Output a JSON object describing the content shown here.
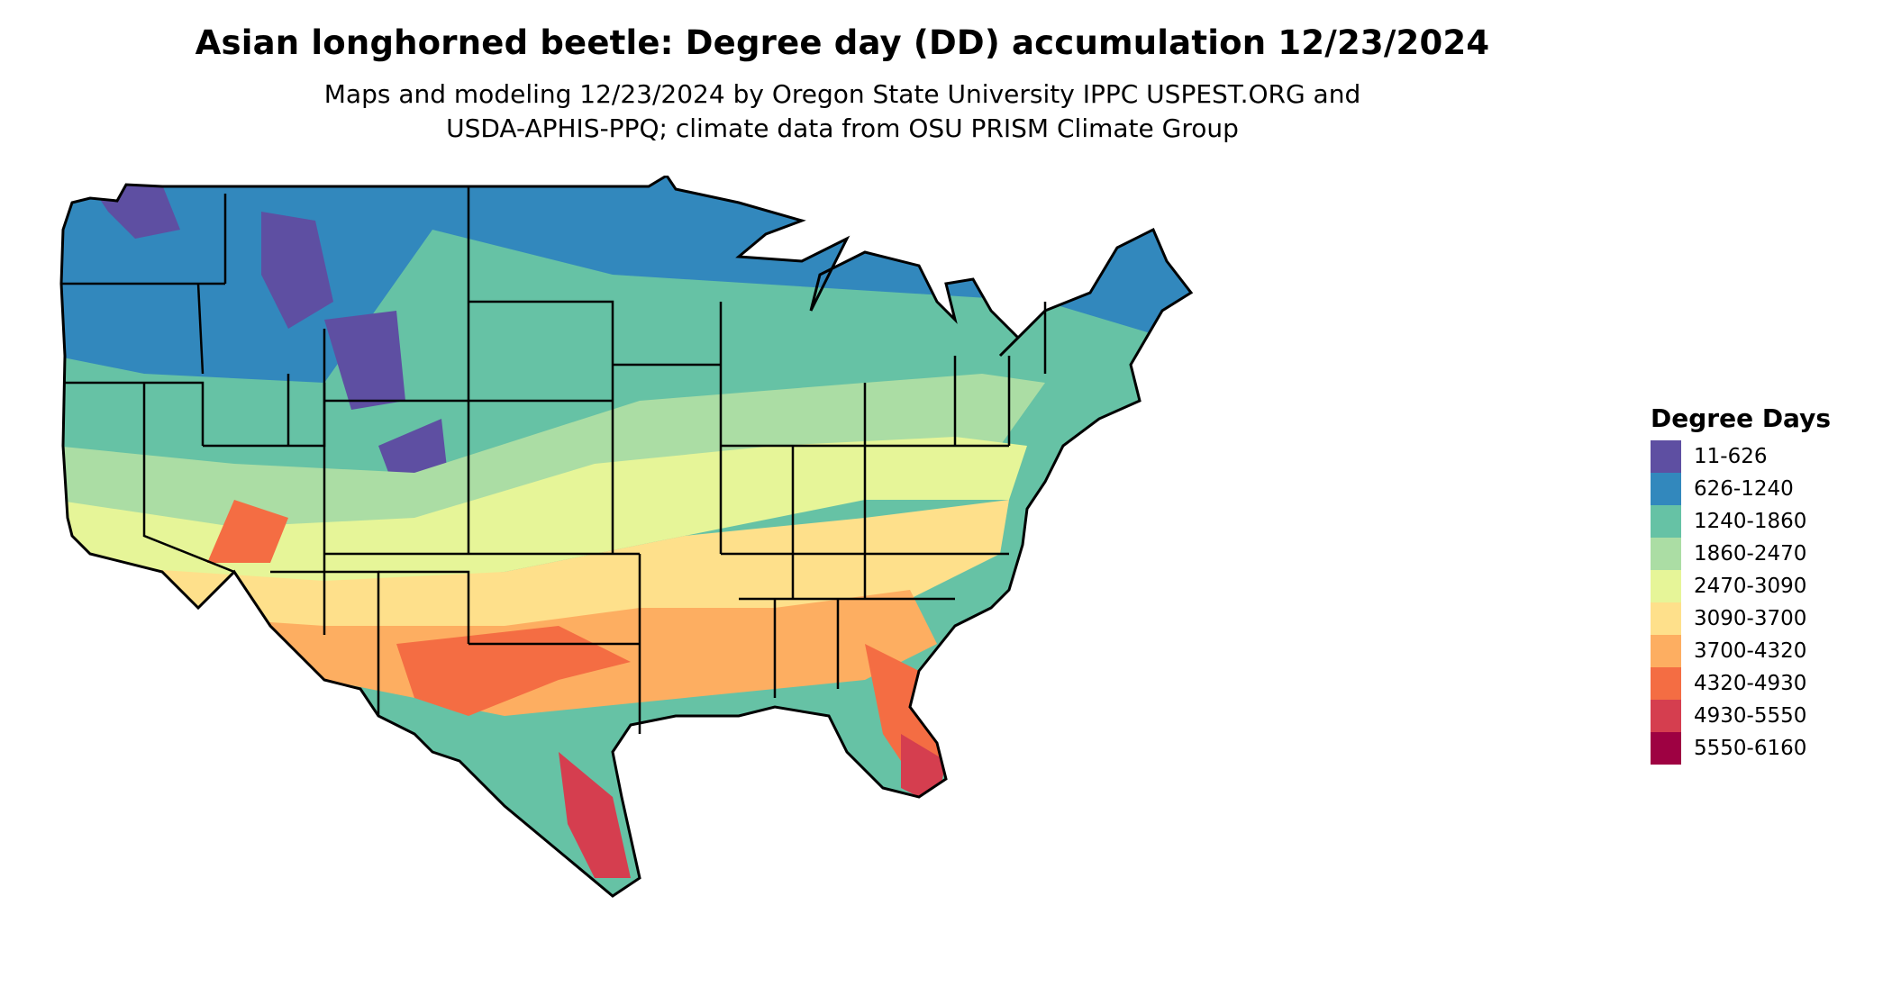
{
  "title": "Asian longhorned beetle: Degree day (DD) accumulation 12/23/2024",
  "subtitle_lines": [
    "Maps and modeling 12/23/2024 by Oregon State University IPPC USPEST.ORG and",
    "USDA-APHIS-PPQ; climate data from OSU PRISM Climate Group"
  ],
  "legend": {
    "title": "Degree Days",
    "items": [
      {
        "label": "11-626",
        "color": "#5e4fa2"
      },
      {
        "label": "626-1240",
        "color": "#3288bd"
      },
      {
        "label": "1240-1860",
        "color": "#66c2a5"
      },
      {
        "label": "1860-2470",
        "color": "#abdda4"
      },
      {
        "label": "2470-3090",
        "color": "#e6f598"
      },
      {
        "label": "3090-3700",
        "color": "#fee08b"
      },
      {
        "label": "3700-4320",
        "color": "#fdae61"
      },
      {
        "label": "4320-4930",
        "color": "#f46d43"
      },
      {
        "label": "4930-5550",
        "color": "#d53e4f"
      },
      {
        "label": "5550-6160",
        "color": "#9e0142"
      }
    ]
  },
  "map": {
    "region": "Contiguous United States",
    "border_color": "#000000",
    "background": "#ffffff"
  }
}
